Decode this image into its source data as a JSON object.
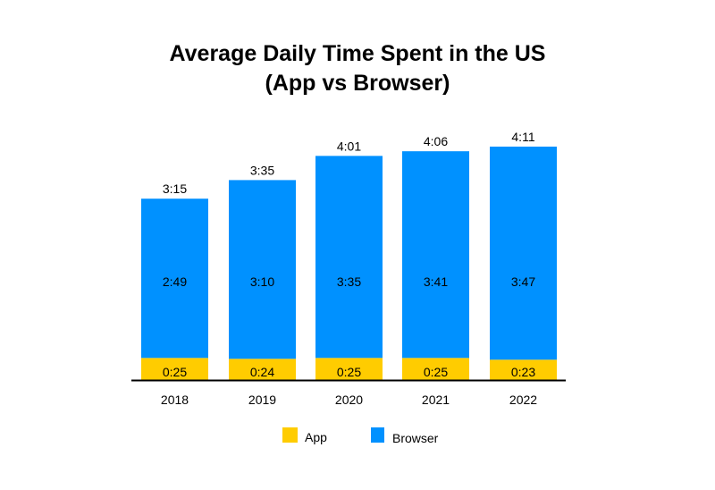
{
  "chart_data": {
    "type": "bar",
    "stacked": true,
    "title_lines": [
      "Average Daily Time Spent in the US",
      "(App vs Browser)"
    ],
    "categories": [
      "2018",
      "2019",
      "2020",
      "2021",
      "2022"
    ],
    "unit": "minutes",
    "series": [
      {
        "name": "App",
        "color": "#FFCC00",
        "values": [
          25,
          24,
          25,
          25,
          23
        ],
        "labels": [
          "0:25",
          "0:24",
          "0:25",
          "0:25",
          "0:23"
        ]
      },
      {
        "name": "Browser",
        "color": "#0091FF",
        "values": [
          169,
          190,
          215,
          221,
          227
        ],
        "labels": [
          "2:49",
          "3:10",
          "3:35",
          "3:41",
          "3:47"
        ]
      }
    ],
    "totals": [
      195,
      215,
      241,
      246,
      251
    ],
    "total_labels": [
      "3:15",
      "3:35",
      "4:01",
      "4:06",
      "4:11"
    ],
    "xlabel": "",
    "ylabel": "",
    "ylim": [
      0,
      260
    ],
    "grid": false,
    "legend_position": "bottom-center"
  }
}
